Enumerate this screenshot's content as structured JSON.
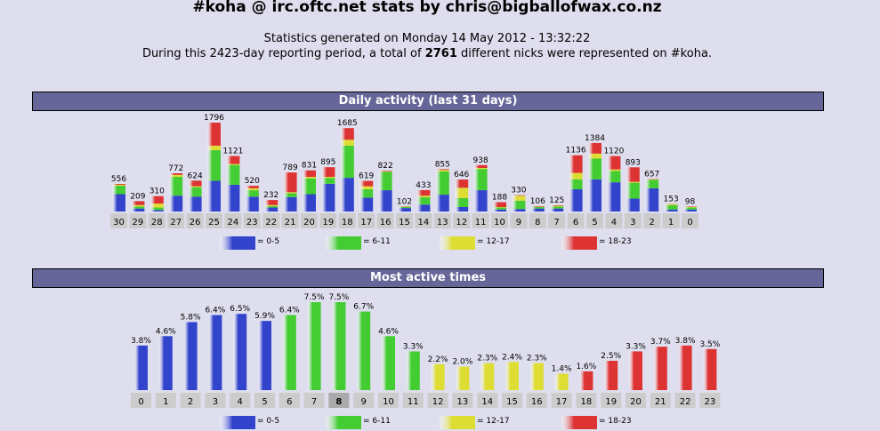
{
  "header": {
    "title": "#koha @ irc.oftc.net stats by chris@bigballofwax.co.nz",
    "generated": "Statistics generated on Monday 14 May 2012 - 13:32:22",
    "period_prefix": "During this 2423-day reporting period, a total of",
    "nick_count": "2761",
    "period_suffix": "different nicks were represented on #koha."
  },
  "sections": {
    "daily_title": "Daily activity (last 31 days)",
    "times_title": "Most active times"
  },
  "legend": [
    {
      "label": "= 0-5",
      "color": "#3344cc"
    },
    {
      "label": "= 6-11",
      "color": "#44cc33"
    },
    {
      "label": "= 12-17",
      "color": "#dddd33"
    },
    {
      "label": "= 18-23",
      "color": "#dd3333"
    }
  ],
  "chart_data": [
    {
      "type": "bar",
      "stacked": true,
      "title": "Daily activity (last 31 days)",
      "categories": [
        "30",
        "29",
        "28",
        "27",
        "26",
        "25",
        "24",
        "23",
        "22",
        "21",
        "20",
        "19",
        "18",
        "17",
        "16",
        "15",
        "14",
        "13",
        "12",
        "11",
        "10",
        "9",
        "8",
        "7",
        "6",
        "5",
        "4",
        "3",
        "2",
        "1",
        "0"
      ],
      "totals": [
        556,
        209,
        310,
        772,
        624,
        1796,
        1121,
        520,
        232,
        789,
        831,
        895,
        1685,
        619,
        822,
        102,
        433,
        855,
        646,
        938,
        188,
        330,
        106,
        125,
        1136,
        1384,
        1120,
        893,
        657,
        153,
        98
      ],
      "series": [
        {
          "name": "0-5",
          "values": [
            350,
            60,
            30,
            320,
            300,
            620,
            540,
            300,
            80,
            290,
            350,
            560,
            680,
            280,
            430,
            70,
            140,
            340,
            90,
            430,
            40,
            50,
            60,
            60,
            450,
            650,
            590,
            260,
            470,
            40,
            40
          ]
        },
        {
          "name": "6-11",
          "values": [
            170,
            40,
            50,
            380,
            190,
            620,
            400,
            130,
            30,
            80,
            320,
            120,
            650,
            170,
            370,
            20,
            150,
            470,
            180,
            430,
            40,
            170,
            30,
            40,
            200,
            420,
            230,
            320,
            170,
            90,
            40
          ]
        },
        {
          "name": "12-17",
          "values": [
            20,
            30,
            80,
            40,
            20,
            90,
            20,
            40,
            20,
            20,
            30,
            20,
            120,
            60,
            10,
            5,
            30,
            30,
            210,
            20,
            10,
            100,
            6,
            15,
            130,
            100,
            30,
            20,
            10,
            20,
            10
          ]
        },
        {
          "name": "18-23",
          "values": [
            16,
            79,
            150,
            32,
            114,
            466,
            161,
            50,
            102,
            399,
            131,
            195,
            235,
            109,
            12,
            7,
            113,
            15,
            166,
            58,
            98,
            10,
            10,
            10,
            356,
            214,
            270,
            293,
            7,
            3,
            8
          ]
        }
      ]
    },
    {
      "type": "bar",
      "title": "Most active times",
      "categories": [
        "0",
        "1",
        "2",
        "3",
        "4",
        "5",
        "6",
        "7",
        "8",
        "9",
        "10",
        "11",
        "12",
        "13",
        "14",
        "15",
        "16",
        "17",
        "18",
        "19",
        "20",
        "21",
        "22",
        "23"
      ],
      "values": [
        3.8,
        4.6,
        5.8,
        6.4,
        6.5,
        5.9,
        6.4,
        7.5,
        7.5,
        6.7,
        4.6,
        3.3,
        2.2,
        2.0,
        2.3,
        2.4,
        2.3,
        1.4,
        1.6,
        2.5,
        3.3,
        3.7,
        3.8,
        3.5
      ],
      "value_labels": [
        "3.8%",
        "4.6%",
        "5.8%",
        "6.4%",
        "6.5%",
        "5.9%",
        "6.4%",
        "7.5%",
        "7.5%",
        "6.7%",
        "4.6%",
        "3.3%",
        "2.2%",
        "2.0%",
        "2.3%",
        "2.4%",
        "2.3%",
        "1.4%",
        "1.6%",
        "2.5%",
        "3.3%",
        "3.7%",
        "3.8%",
        "3.5%"
      ],
      "highlighted_hour": "8",
      "unit": "%"
    }
  ]
}
